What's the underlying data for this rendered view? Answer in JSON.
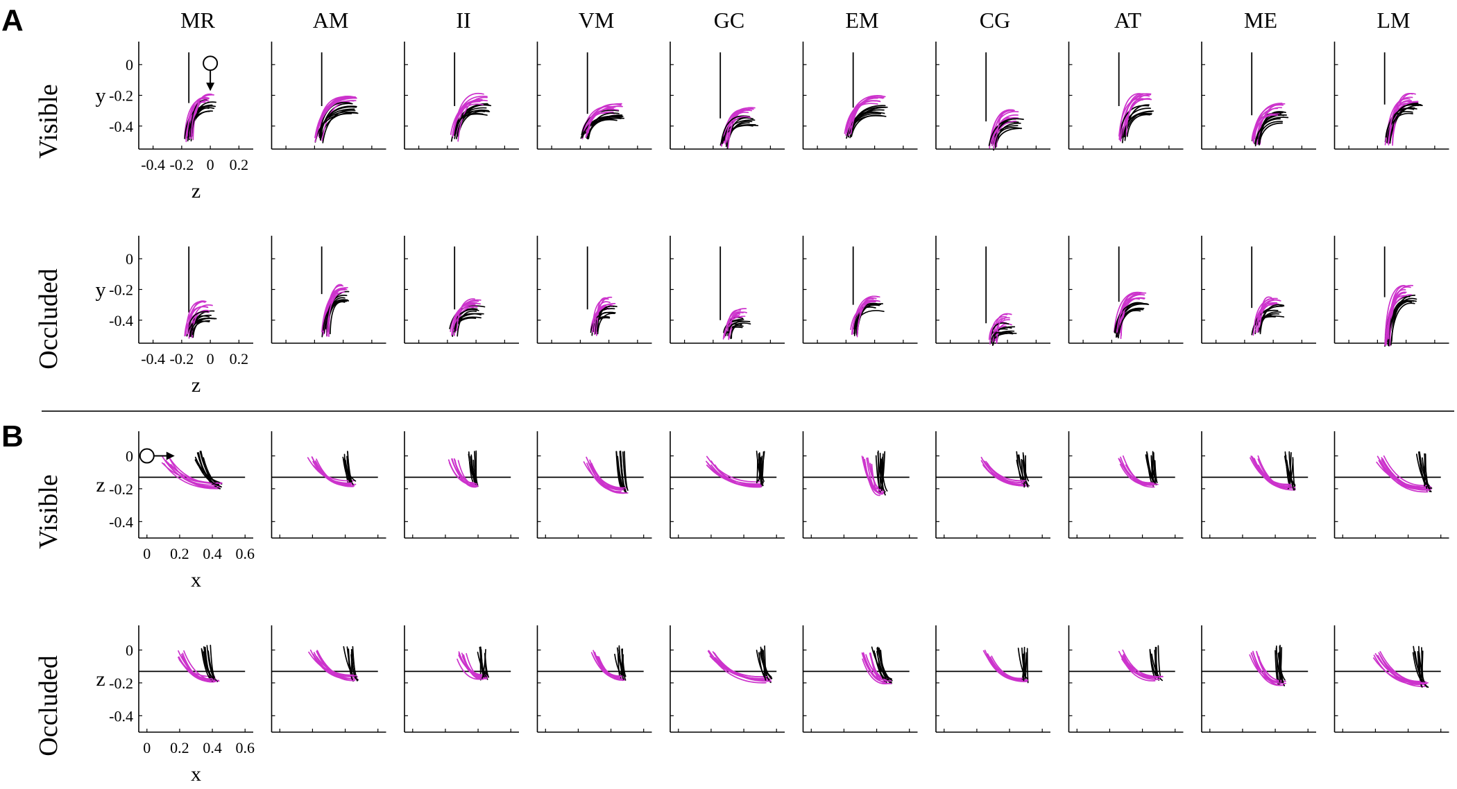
{
  "figure": {
    "panel_labels": [
      "A",
      "B"
    ],
    "subjects": [
      "MR",
      "AM",
      "II",
      "VM",
      "GC",
      "EM",
      "CG",
      "AT",
      "ME",
      "LM"
    ],
    "colors": {
      "trace_primary": "#000000",
      "trace_secondary": "#cc33cc",
      "axis": "#000000",
      "reference": "#000000"
    }
  },
  "panels": {
    "A": {
      "rows": [
        {
          "label": "Visible",
          "ylabel": "y",
          "xlabel": "z"
        },
        {
          "label": "Occluded",
          "ylabel": "y",
          "xlabel": "z"
        }
      ],
      "x_ticks": [
        "-0.4",
        "-0.2",
        "0",
        "0.2"
      ],
      "y_ticks": [
        "0",
        "-0.2",
        "-0.4"
      ]
    },
    "B": {
      "rows": [
        {
          "label": "Visible",
          "ylabel": "z",
          "xlabel": "x"
        },
        {
          "label": "Occluded",
          "ylabel": "z",
          "xlabel": "x"
        }
      ],
      "x_ticks": [
        "0",
        "0.2",
        "0.4",
        "0.6"
      ],
      "y_ticks": [
        "0",
        "-0.2",
        "-0.4"
      ]
    }
  },
  "chart_data": [
    {
      "type": "line",
      "panel": "A",
      "xlabel": "z",
      "ylabel": "y",
      "xlim": [
        -0.5,
        0.3
      ],
      "ylim": [
        -0.55,
        0.15
      ],
      "x_ticks": [
        -0.4,
        -0.2,
        0,
        0.2
      ],
      "y_ticks": [
        0,
        -0.2,
        -0.4
      ],
      "reference_line": {
        "orientation": "vertical",
        "x": -0.15,
        "from_y": 0.08,
        "to_y": -0.42
      },
      "start_marker": {
        "x": 0,
        "y": 0,
        "arrow": "down"
      },
      "trajectory_ends": {
        "Visible": {
          "MR": {
            "end_z": -0.15,
            "end_y": -0.48,
            "peak_z": 0.0,
            "peak_y": -0.25
          },
          "AM": {
            "end_z": -0.17,
            "end_y": -0.48,
            "peak_z": 0.07,
            "peak_y": -0.27
          },
          "II": {
            "end_z": -0.15,
            "end_y": -0.47,
            "peak_z": 0.06,
            "peak_y": -0.27
          },
          "VM": {
            "end_z": -0.17,
            "end_y": -0.46,
            "peak_z": 0.07,
            "peak_y": -0.32
          },
          "GC": {
            "end_z": -0.12,
            "end_y": -0.52,
            "peak_z": 0.07,
            "peak_y": -0.35
          },
          "EM": {
            "end_z": -0.18,
            "end_y": -0.45,
            "peak_z": 0.05,
            "peak_y": -0.28
          },
          "CG": {
            "end_z": -0.1,
            "end_y": -0.53,
            "peak_z": 0.07,
            "peak_y": -0.37
          },
          "AT": {
            "end_z": -0.12,
            "end_y": -0.48,
            "peak_z": 0.06,
            "peak_y": -0.27
          },
          "ME": {
            "end_z": -0.12,
            "end_y": -0.5,
            "peak_z": 0.07,
            "peak_y": -0.33
          },
          "LM": {
            "end_z": -0.12,
            "end_y": -0.5,
            "peak_z": 0.07,
            "peak_y": -0.26
          }
        },
        "Occluded": {
          "MR": {
            "end_z": -0.15,
            "end_y": -0.49,
            "peak_z": 0.0,
            "peak_y": -0.35
          },
          "AM": {
            "end_z": -0.12,
            "end_y": -0.48,
            "peak_z": 0.02,
            "peak_y": -0.23
          },
          "II": {
            "end_z": -0.16,
            "end_y": -0.48,
            "peak_z": 0.02,
            "peak_y": -0.33
          },
          "VM": {
            "end_z": -0.1,
            "end_y": -0.47,
            "peak_z": 0.02,
            "peak_y": -0.33
          },
          "GC": {
            "end_z": -0.1,
            "end_y": -0.5,
            "peak_z": 0.02,
            "peak_y": -0.4
          },
          "EM": {
            "end_z": -0.14,
            "end_y": -0.48,
            "peak_z": 0.03,
            "peak_y": -0.3
          },
          "CG": {
            "end_z": -0.1,
            "end_y": -0.54,
            "peak_z": 0.02,
            "peak_y": -0.44
          },
          "AT": {
            "end_z": -0.16,
            "end_y": -0.5,
            "peak_z": 0.02,
            "peak_y": -0.28
          },
          "ME": {
            "end_z": -0.12,
            "end_y": -0.47,
            "peak_z": 0.03,
            "peak_y": -0.32
          },
          "LM": {
            "end_z": -0.12,
            "end_y": -0.54,
            "peak_z": 0.03,
            "peak_y": -0.25
          }
        }
      }
    },
    {
      "type": "line",
      "panel": "B",
      "xlabel": "x",
      "ylabel": "z",
      "xlim": [
        -0.05,
        0.65
      ],
      "ylim": [
        -0.5,
        0.15
      ],
      "x_ticks": [
        0,
        0.2,
        0.4,
        0.6
      ],
      "y_ticks": [
        0,
        -0.2,
        -0.4
      ],
      "reference_line": {
        "orientation": "horizontal",
        "y": -0.13,
        "from_x": -0.05,
        "to_x": 0.6
      },
      "start_marker": {
        "x": 0,
        "y": 0,
        "arrow": "right"
      },
      "trajectory_ends": {
        "Visible": {
          "MR": {
            "secondary_start_x": 0.12,
            "primary_start_x": 0.32,
            "end_x": 0.44,
            "end_z": -0.18
          },
          "AM": {
            "secondary_start_x": 0.2,
            "primary_start_x": 0.4,
            "end_x": 0.44,
            "end_z": -0.17
          },
          "II": {
            "secondary_start_x": 0.25,
            "primary_start_x": 0.36,
            "end_x": 0.38,
            "end_z": -0.17
          },
          "VM": {
            "secondary_start_x": 0.26,
            "primary_start_x": 0.46,
            "end_x": 0.48,
            "end_z": -0.21
          },
          "GC": {
            "secondary_start_x": 0.2,
            "primary_start_x": 0.5,
            "end_x": 0.5,
            "end_z": -0.17
          },
          "EM": {
            "secondary_start_x": 0.34,
            "primary_start_x": 0.42,
            "end_x": 0.44,
            "end_z": -0.22
          },
          "CG": {
            "secondary_start_x": 0.25,
            "primary_start_x": 0.47,
            "end_x": 0.5,
            "end_z": -0.17
          },
          "AT": {
            "secondary_start_x": 0.27,
            "primary_start_x": 0.45,
            "end_x": 0.47,
            "end_z": -0.17
          },
          "ME": {
            "secondary_start_x": 0.27,
            "primary_start_x": 0.48,
            "end_x": 0.5,
            "end_z": -0.19
          },
          "LM": {
            "secondary_start_x": 0.23,
            "primary_start_x": 0.48,
            "end_x": 0.52,
            "end_z": -0.2
          }
        },
        "Occluded": {
          "MR": {
            "secondary_start_x": 0.22,
            "primary_start_x": 0.36,
            "end_x": 0.42,
            "end_z": -0.18
          },
          "AM": {
            "secondary_start_x": 0.2,
            "primary_start_x": 0.42,
            "end_x": 0.46,
            "end_z": -0.17
          },
          "II": {
            "secondary_start_x": 0.3,
            "primary_start_x": 0.42,
            "end_x": 0.44,
            "end_z": -0.17
          },
          "VM": {
            "secondary_start_x": 0.3,
            "primary_start_x": 0.45,
            "end_x": 0.47,
            "end_z": -0.17
          },
          "GC": {
            "secondary_start_x": 0.2,
            "primary_start_x": 0.5,
            "end_x": 0.55,
            "end_z": -0.18
          },
          "EM": {
            "secondary_start_x": 0.34,
            "primary_start_x": 0.4,
            "end_x": 0.47,
            "end_z": -0.19
          },
          "CG": {
            "secondary_start_x": 0.27,
            "primary_start_x": 0.48,
            "end_x": 0.5,
            "end_z": -0.18
          },
          "AT": {
            "secondary_start_x": 0.27,
            "primary_start_x": 0.47,
            "end_x": 0.5,
            "end_z": -0.17
          },
          "ME": {
            "secondary_start_x": 0.27,
            "primary_start_x": 0.42,
            "end_x": 0.44,
            "end_z": -0.2
          },
          "LM": {
            "secondary_start_x": 0.2,
            "primary_start_x": 0.46,
            "end_x": 0.5,
            "end_z": -0.21
          }
        }
      }
    }
  ]
}
